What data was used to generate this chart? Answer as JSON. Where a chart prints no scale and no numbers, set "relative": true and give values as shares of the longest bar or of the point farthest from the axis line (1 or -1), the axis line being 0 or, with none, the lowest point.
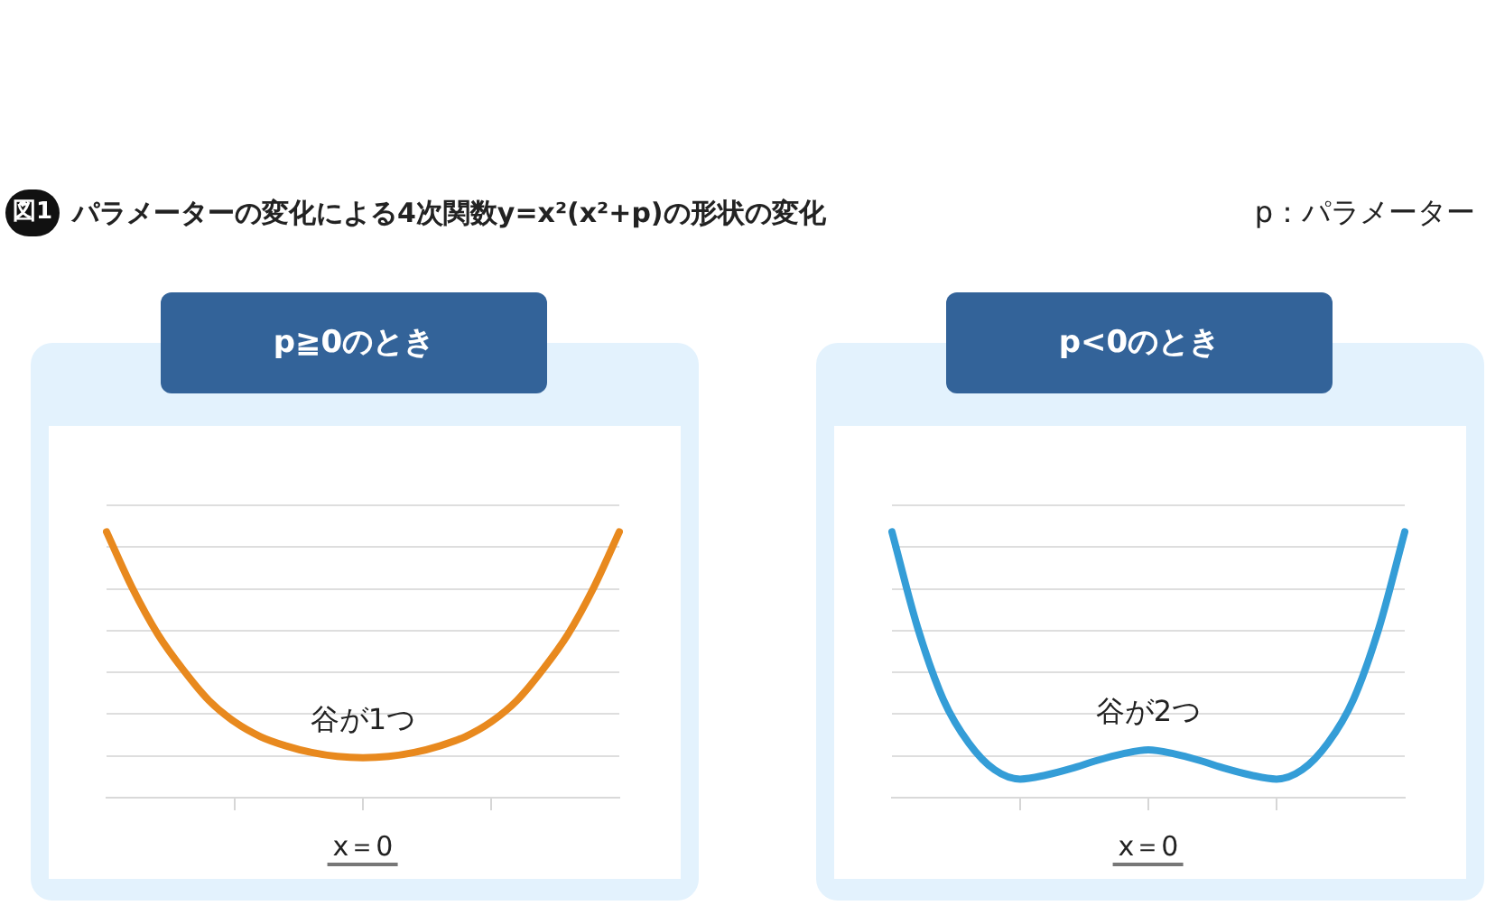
{
  "chart_data": [
    {
      "type": "other",
      "title": "図1 パラメーターの変化による4次関数y=x²(x²+p)の形状の変化",
      "annotations": [
        "p：パラメーター"
      ]
    },
    {
      "type": "line",
      "title": "p≧0のとき",
      "xlabel": "x＝0",
      "categories": [
        null,
        null,
        null,
        null,
        null,
        null,
        null,
        null,
        null,
        null,
        null,
        null,
        null,
        null,
        null,
        null,
        null,
        null,
        null,
        null,
        null
      ],
      "relative": true,
      "grid": "y",
      "tick_labels": false,
      "series": [
        {
          "color": "#e8891e",
          "values": [
            1,
            0.79,
            0.615,
            0.48,
            0.365,
            0.285,
            0.23,
            0.195,
            0.17,
            0.155,
            0.15,
            0.155,
            0.17,
            0.195,
            0.23,
            0.285,
            0.365,
            0.48,
            0.615,
            0.79,
            1
          ]
        }
      ],
      "annotations": [
        "谷が1つ"
      ]
    },
    {
      "type": "line",
      "title": "p<0のとき",
      "xlabel": "x＝0",
      "categories": [
        null,
        null,
        null,
        null,
        null,
        null,
        null,
        null,
        null,
        null,
        null,
        null,
        null,
        null,
        null,
        null,
        null,
        null,
        null,
        null,
        null
      ],
      "relative": true,
      "grid": "y",
      "tick_labels": false,
      "series": [
        {
          "color": "#349dd7",
          "values": [
            1,
            0.64,
            0.37,
            0.205,
            0.105,
            0.07,
            0.085,
            0.11,
            0.14,
            0.165,
            0.18,
            0.165,
            0.14,
            0.11,
            0.085,
            0.07,
            0.105,
            0.205,
            0.37,
            0.64,
            1
          ]
        }
      ],
      "annotations": [
        "谷が2つ"
      ]
    }
  ]
}
